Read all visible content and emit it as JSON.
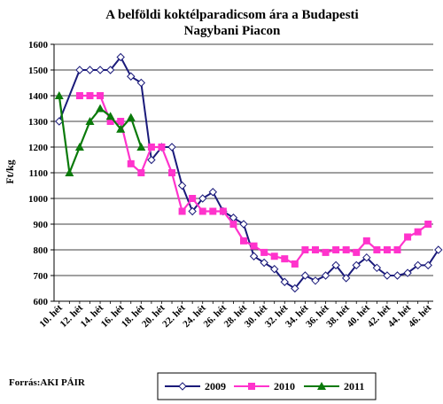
{
  "chart_data": {
    "type": "line",
    "title": "A belföldi koktélparadicsom ára a Budapesti Nagybani Piacon",
    "title_lines": [
      "A belföldi koktélparadicsom ára a Budapesti",
      "Nagybani Piacon"
    ],
    "ylabel": "Ft/kg",
    "xlabel": "",
    "ylim": [
      600,
      1600
    ],
    "yticks": [
      600,
      700,
      800,
      900,
      1000,
      1100,
      1200,
      1300,
      1400,
      1500,
      1600
    ],
    "x_tick_labels": [
      "10. hét",
      "12. hét",
      "14. hét",
      "16. hét",
      "18. hét",
      "20. hét",
      "22. hét",
      "24. hét",
      "26. hét",
      "28. hét",
      "30. hét",
      "32. hét",
      "34. hét",
      "36. hét",
      "38. hét",
      "40. hét",
      "42. hét",
      "44. hét",
      "46. hét"
    ],
    "x_tick_weeks": [
      10,
      12,
      14,
      16,
      18,
      20,
      22,
      24,
      26,
      28,
      30,
      32,
      34,
      36,
      38,
      40,
      42,
      44,
      46
    ],
    "x_range": [
      9.5,
      46.5
    ],
    "grid": "horizontal",
    "legend_position": "bottom-right",
    "series": [
      {
        "name": "2009",
        "color": "#1a1a7a",
        "marker": "diamond",
        "points": [
          [
            10,
            1300
          ],
          [
            12,
            1500
          ],
          [
            13,
            1500
          ],
          [
            14,
            1500
          ],
          [
            15,
            1500
          ],
          [
            16,
            1550
          ],
          [
            17,
            1475
          ],
          [
            18,
            1450
          ],
          [
            19,
            1150
          ],
          [
            20,
            1200
          ],
          [
            21,
            1200
          ],
          [
            22,
            1050
          ],
          [
            23,
            950
          ],
          [
            24,
            1000
          ],
          [
            25,
            1025
          ],
          [
            26,
            950
          ],
          [
            27,
            925
          ],
          [
            28,
            900
          ],
          [
            29,
            775
          ],
          [
            30,
            750
          ],
          [
            31,
            725
          ],
          [
            32,
            675
          ],
          [
            33,
            650
          ],
          [
            34,
            700
          ],
          [
            35,
            680
          ],
          [
            36,
            700
          ],
          [
            37,
            740
          ],
          [
            38,
            690
          ],
          [
            39,
            740
          ],
          [
            40,
            770
          ],
          [
            41,
            730
          ],
          [
            42,
            700
          ],
          [
            43,
            700
          ],
          [
            44,
            710
          ],
          [
            45,
            740
          ],
          [
            46,
            740
          ],
          [
            47,
            800
          ]
        ]
      },
      {
        "name": "2010",
        "color": "#ff33cc",
        "marker": "square",
        "points": [
          [
            12,
            1400
          ],
          [
            13,
            1400
          ],
          [
            14,
            1400
          ],
          [
            15,
            1300
          ],
          [
            16,
            1300
          ],
          [
            17,
            1135
          ],
          [
            18,
            1100
          ],
          [
            19,
            1200
          ],
          [
            20,
            1200
          ],
          [
            21,
            1100
          ],
          [
            22,
            950
          ],
          [
            23,
            1000
          ],
          [
            24,
            950
          ],
          [
            25,
            950
          ],
          [
            26,
            950
          ],
          [
            27,
            900
          ],
          [
            28,
            835
          ],
          [
            29,
            815
          ],
          [
            30,
            790
          ],
          [
            31,
            775
          ],
          [
            32,
            765
          ],
          [
            33,
            745
          ],
          [
            34,
            800
          ],
          [
            35,
            800
          ],
          [
            36,
            790
          ],
          [
            37,
            800
          ],
          [
            38,
            800
          ],
          [
            39,
            790
          ],
          [
            40,
            835
          ],
          [
            41,
            800
          ],
          [
            42,
            800
          ],
          [
            43,
            800
          ],
          [
            44,
            850
          ],
          [
            45,
            870
          ],
          [
            46,
            900
          ]
        ]
      },
      {
        "name": "2011",
        "color": "#0a7a0a",
        "marker": "triangle",
        "points": [
          [
            10,
            1400
          ],
          [
            11,
            1100
          ],
          [
            12,
            1200
          ],
          [
            13,
            1300
          ],
          [
            14,
            1350
          ],
          [
            15,
            1320
          ],
          [
            16,
            1270
          ],
          [
            17,
            1315
          ],
          [
            18,
            1200
          ]
        ]
      }
    ]
  },
  "source": "Forrás:AKI PÁIR"
}
